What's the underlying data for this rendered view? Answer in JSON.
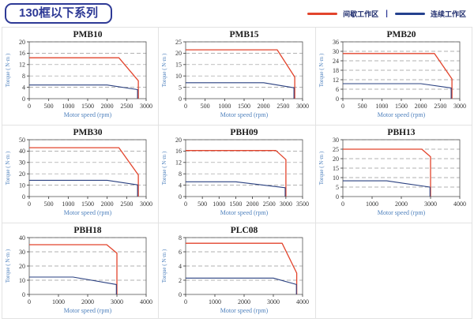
{
  "header": {
    "title": "130框以下系列",
    "legend_separator": "|",
    "legend": [
      {
        "name": "intermittent-zone",
        "label": "间歇工作区",
        "color": "#e2442c"
      },
      {
        "name": "continuous-zone",
        "label": "连续工作区",
        "color": "#24418e"
      }
    ]
  },
  "colors": {
    "badge_navy": "#2e3a96",
    "legend_text": "#1f2d6e",
    "series_red": "#e2442c",
    "series_navy": "#2a4080",
    "axis_label_blue": "#4f81bd",
    "tick_text": "#333333",
    "grid_dash": "#999999",
    "plot_border": "#555555",
    "cell_border": "#e2e2e2"
  },
  "axis_labels": {
    "x": "Motor speed (rpm)",
    "y": "Torque ( N·m )"
  },
  "chart_data": [
    {
      "type": "line",
      "title": "PMB10",
      "xlabel": "Motor speed (rpm)",
      "ylabel": "Torque ( N·m )",
      "xlim": [
        0,
        3000
      ],
      "xticks": [
        0,
        500,
        1000,
        1500,
        2000,
        2500,
        3000
      ],
      "ylim": [
        0,
        20
      ],
      "yticks": [
        0,
        4,
        8,
        12,
        16,
        20
      ],
      "series": [
        {
          "name": "间歇工作区",
          "color": "#e2442c",
          "points": [
            [
              0,
              14.4
            ],
            [
              2300,
              14.4
            ],
            [
              2800,
              6.3
            ],
            [
              2800,
              0
            ]
          ]
        },
        {
          "name": "连续工作区",
          "color": "#2a4080",
          "points": [
            [
              0,
              4.8
            ],
            [
              2000,
              4.8
            ],
            [
              2780,
              3.2
            ],
            [
              2780,
              0
            ]
          ]
        }
      ]
    },
    {
      "type": "line",
      "title": "PMB15",
      "xlabel": "Motor speed (rpm)",
      "ylabel": "Torque ( N·m )",
      "xlim": [
        0,
        3000
      ],
      "xticks": [
        0,
        500,
        1000,
        1500,
        2000,
        2500,
        3000
      ],
      "ylim": [
        0,
        25
      ],
      "yticks": [
        0,
        5,
        10,
        15,
        20,
        25
      ],
      "series": [
        {
          "name": "间歇工作区",
          "color": "#e2442c",
          "points": [
            [
              0,
              21.5
            ],
            [
              2350,
              21.5
            ],
            [
              2800,
              9.5
            ],
            [
              2800,
              0
            ]
          ]
        },
        {
          "name": "连续工作区",
          "color": "#2a4080",
          "points": [
            [
              0,
              7
            ],
            [
              2000,
              7
            ],
            [
              2780,
              4.8
            ],
            [
              2780,
              0
            ]
          ]
        }
      ]
    },
    {
      "type": "line",
      "title": "PMB20",
      "xlabel": "Motor speed (rpm)",
      "ylabel": "Torque ( N·m )",
      "xlim": [
        0,
        3000
      ],
      "xticks": [
        0,
        500,
        1000,
        1500,
        2000,
        2500,
        3000
      ],
      "ylim": [
        0,
        36
      ],
      "yticks": [
        0,
        6,
        12,
        18,
        24,
        30,
        36
      ],
      "series": [
        {
          "name": "间歇工作区",
          "color": "#e2442c",
          "points": [
            [
              0,
              28.6
            ],
            [
              2350,
              28.6
            ],
            [
              2800,
              12.5
            ],
            [
              2800,
              0
            ]
          ]
        },
        {
          "name": "连续工作区",
          "color": "#2a4080",
          "points": [
            [
              0,
              9.5
            ],
            [
              2000,
              9.5
            ],
            [
              2780,
              6.8
            ],
            [
              2780,
              0
            ]
          ]
        }
      ]
    },
    {
      "type": "line",
      "title": "PMB30",
      "xlabel": "Motor speed (rpm)",
      "ylabel": "Torque ( N·m )",
      "xlim": [
        0,
        3000
      ],
      "xticks": [
        0,
        500,
        1000,
        1500,
        2000,
        2500,
        3000
      ],
      "ylim": [
        0,
        50
      ],
      "yticks": [
        0,
        10,
        20,
        30,
        40,
        50
      ],
      "series": [
        {
          "name": "间歇工作区",
          "color": "#e2442c",
          "points": [
            [
              0,
              43
            ],
            [
              2300,
              43
            ],
            [
              2800,
              19
            ],
            [
              2800,
              0
            ]
          ]
        },
        {
          "name": "连续工作区",
          "color": "#2a4080",
          "points": [
            [
              0,
              14.3
            ],
            [
              2000,
              14.3
            ],
            [
              2780,
              10.3
            ],
            [
              2780,
              0
            ]
          ]
        }
      ]
    },
    {
      "type": "line",
      "title": "PBH09",
      "xlabel": "Motor speed (rpm)",
      "ylabel": "Torque ( N·m )",
      "xlim": [
        0,
        3500
      ],
      "xticks": [
        0,
        500,
        1000,
        1500,
        2000,
        2500,
        3000,
        3500
      ],
      "ylim": [
        0,
        20
      ],
      "yticks": [
        0,
        4,
        8,
        12,
        16,
        20
      ],
      "series": [
        {
          "name": "间歇工作区",
          "color": "#e2442c",
          "points": [
            [
              0,
              16.2
            ],
            [
              2700,
              16.2
            ],
            [
              3000,
              13
            ],
            [
              3000,
              0
            ]
          ]
        },
        {
          "name": "连续工作区",
          "color": "#2a4080",
          "points": [
            [
              0,
              5.2
            ],
            [
              1500,
              5.2
            ],
            [
              2980,
              3.1
            ],
            [
              2980,
              0
            ]
          ]
        }
      ]
    },
    {
      "type": "line",
      "title": "PBH13",
      "xlabel": "Motor speed (rpm)",
      "ylabel": "Torque ( N·m )",
      "xlim": [
        0,
        4000
      ],
      "xticks": [
        0,
        1000,
        2000,
        3000,
        4000
      ],
      "ylim": [
        0,
        30
      ],
      "yticks": [
        0,
        5,
        10,
        15,
        20,
        25,
        30
      ],
      "series": [
        {
          "name": "间歇工作区",
          "color": "#e2442c",
          "points": [
            [
              0,
              25
            ],
            [
              2700,
              25
            ],
            [
              3000,
              21
            ],
            [
              3000,
              0
            ]
          ]
        },
        {
          "name": "连续工作区",
          "color": "#2a4080",
          "points": [
            [
              0,
              8.3
            ],
            [
              1500,
              8.3
            ],
            [
              2980,
              5
            ],
            [
              2980,
              0
            ]
          ]
        }
      ]
    },
    {
      "type": "line",
      "title": "PBH18",
      "xlabel": "Motor speed (rpm)",
      "ylabel": "Torque ( N·m )",
      "xlim": [
        0,
        4000
      ],
      "xticks": [
        0,
        1000,
        2000,
        3000,
        4000
      ],
      "ylim": [
        0,
        40
      ],
      "yticks": [
        0,
        10,
        20,
        30,
        40
      ],
      "series": [
        {
          "name": "间歇工作区",
          "color": "#e2442c",
          "points": [
            [
              0,
              35
            ],
            [
              2650,
              35
            ],
            [
              3000,
              29
            ],
            [
              3000,
              0
            ]
          ]
        },
        {
          "name": "连续工作区",
          "color": "#2a4080",
          "points": [
            [
              0,
              12.2
            ],
            [
              1500,
              12.2
            ],
            [
              2980,
              7
            ],
            [
              2980,
              0
            ]
          ]
        }
      ]
    },
    {
      "type": "line",
      "title": "PLC08",
      "xlabel": "Motor speed (rpm)",
      "ylabel": "Torque ( N·m )",
      "xlim": [
        0,
        4000
      ],
      "xticks": [
        0,
        1000,
        2000,
        3000,
        4000
      ],
      "ylim": [
        0,
        8
      ],
      "yticks": [
        0,
        2,
        4,
        6,
        8
      ],
      "series": [
        {
          "name": "间歇工作区",
          "color": "#e2442c",
          "points": [
            [
              0,
              7.2
            ],
            [
              3300,
              7.2
            ],
            [
              3800,
              3
            ],
            [
              3800,
              0
            ]
          ]
        },
        {
          "name": "连续工作区",
          "color": "#2a4080",
          "points": [
            [
              0,
              2.3
            ],
            [
              3000,
              2.3
            ],
            [
              3790,
              1.4
            ],
            [
              3790,
              0
            ]
          ]
        }
      ]
    }
  ]
}
